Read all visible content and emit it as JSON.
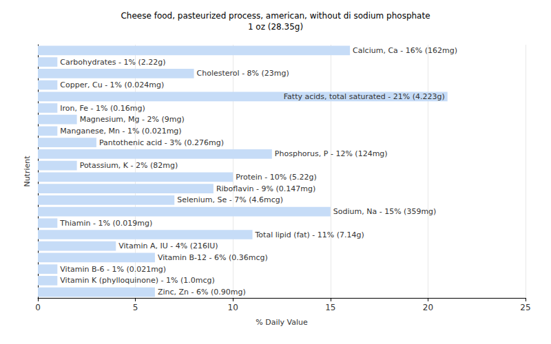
{
  "chart_data": {
    "type": "bar",
    "orientation": "horizontal",
    "title": "Cheese food, pasteurized process, american, without di sodium phosphate",
    "subtitle": "1 oz (28.35g)",
    "x_label": "% Daily Value",
    "y_label": "Nutrient",
    "categories": [
      "Calcium, Ca",
      "Carbohydrates",
      "Cholesterol",
      "Copper, Cu",
      "Fatty acids, total saturated",
      "Iron, Fe",
      "Magnesium, Mg",
      "Manganese, Mn",
      "Pantothenic acid",
      "Phosphorus, P",
      "Potassium, K",
      "Protein",
      "Riboflavin",
      "Selenium, Se",
      "Sodium, Na",
      "Thiamin",
      "Total lipid (fat)",
      "Vitamin A, IU",
      "Vitamin B-12",
      "Vitamin B-6",
      "Vitamin K (phylloquinone)",
      "Zinc, Zn"
    ],
    "values": [
      16,
      1,
      8,
      1,
      21,
      1,
      2,
      1,
      3,
      12,
      2,
      10,
      9,
      7,
      15,
      1,
      11,
      4,
      6,
      1,
      1,
      6
    ],
    "value_labels": [
      "Calcium, Ca - 16% (162mg)",
      "Carbohydrates - 1% (2.22g)",
      "Cholesterol - 8% (23mg)",
      "Copper, Cu - 1% (0.024mg)",
      "Fatty acids, total saturated - 21% (4.223g)",
      "Iron, Fe - 1% (0.16mg)",
      "Magnesium, Mg - 2% (9mg)",
      "Manganese, Mn - 1% (0.021mg)",
      "Pantothenic acid - 3% (0.276mg)",
      "Phosphorus, P - 12% (124mg)",
      "Potassium, K - 2% (82mg)",
      "Protein - 10% (5.22g)",
      "Riboflavin - 9% (0.147mg)",
      "Selenium, Se - 7% (4.6mcg)",
      "Sodium, Na - 15% (359mg)",
      "Thiamin - 1% (0.019mg)",
      "Total lipid (fat) - 11% (7.14g)",
      "Vitamin A, IU - 4% (216IU)",
      "Vitamin B-12 - 6% (0.36mcg)",
      "Vitamin B-6 - 1% (0.021mg)",
      "Vitamin K (phylloquinone) - 1% (1.0mcg)",
      "Zinc, Zn - 6% (0.90mg)"
    ],
    "color": "#c6dcf7",
    "xlim": [
      0,
      25
    ],
    "xticks": [
      0,
      5,
      10,
      15,
      20,
      25
    ],
    "grid": true,
    "data_labels": true,
    "tick_labels": "x"
  }
}
